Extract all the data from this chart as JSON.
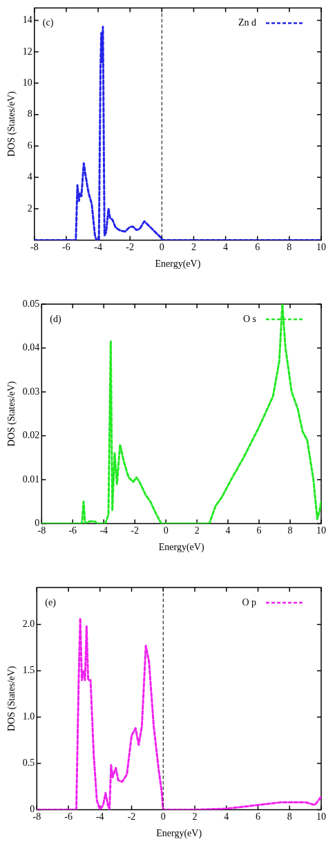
{
  "chart_data": [
    {
      "type": "line",
      "xlabel": "Energy(eV)",
      "ylabel": "DOS (States/eV)",
      "annotations": [
        "(c)"
      ],
      "legend": "top right",
      "line_style": "dashed",
      "marker": "none",
      "grid": false,
      "xlim": [
        -8,
        10
      ],
      "xticks": [
        -8,
        -6,
        -4,
        -2,
        0,
        2,
        4,
        6,
        8,
        10
      ],
      "ylim": [
        0,
        14.8
      ],
      "yticks": [
        2,
        4,
        6,
        8,
        10,
        12,
        14
      ],
      "ref_lines": [
        {
          "axis": "x",
          "value": 0,
          "color": "#000000",
          "line_style": "dashed"
        }
      ],
      "series": [
        {
          "name": "Zn d",
          "color": "#2424e8",
          "x": [
            -8,
            -5.4,
            -5.3,
            -5.2,
            -5.15,
            -5.05,
            -4.9,
            -4.8,
            -4.6,
            -4.4,
            -4.2,
            -4.1,
            -3.95,
            -3.85,
            -3.8,
            -3.75,
            -3.7,
            -3.6,
            -3.5,
            -3.35,
            -3.25,
            -3.1,
            -2.9,
            -2.6,
            -2.3,
            -2,
            -1.8,
            -1.6,
            -1.4,
            -1.1,
            -0.9,
            -0.5,
            -0.1,
            0,
            0.1,
            10
          ],
          "values": [
            0,
            0,
            3.5,
            2.5,
            3,
            2.8,
            4.9,
            4.2,
            3,
            2.3,
            0.3,
            0,
            0,
            11,
            13.2,
            11.3,
            13.6,
            0.3,
            0.5,
            2,
            1.4,
            1.3,
            0.8,
            0.6,
            0.55,
            0.85,
            0.85,
            0.65,
            0.7,
            1.2,
            1,
            0.6,
            0.2,
            0.05,
            0,
            0
          ]
        }
      ]
    },
    {
      "type": "line",
      "xlabel": "Energy(eV)",
      "ylabel": "DOS (States/eV)",
      "annotations": [
        "(d)"
      ],
      "legend": "top right",
      "line_style": "dashed",
      "marker": "none",
      "grid": false,
      "xlim": [
        -8,
        10
      ],
      "xticks": [
        -8,
        -6,
        -4,
        -2,
        0,
        2,
        4,
        6,
        8,
        10
      ],
      "ylim": [
        0,
        0.05
      ],
      "yticks": [
        0,
        0.01,
        0.02,
        0.03,
        0.04,
        0.05
      ],
      "series": [
        {
          "name": "O s",
          "color": "#22e822",
          "x": [
            -8,
            -5.4,
            -5.3,
            -5.2,
            -4.9,
            -4.6,
            -4.4,
            -3.9,
            -3.7,
            -3.55,
            -3.45,
            -3.3,
            -3.15,
            -2.95,
            -2.7,
            -2.4,
            -2.1,
            -1.9,
            -1.7,
            -1.3,
            -1,
            -0.6,
            -0.3,
            2.8,
            3.2,
            3.6,
            4.2,
            5,
            6,
            6.9,
            7.3,
            7.5,
            7.7,
            8.1,
            8.5,
            8.8,
            9.1,
            9.5,
            9.75,
            9.9,
            10
          ],
          "values": [
            0,
            0,
            0.005,
            0,
            0.0005,
            0.0005,
            0,
            0,
            0.002,
            0.0415,
            0.003,
            0.016,
            0.009,
            0.018,
            0.014,
            0.0105,
            0.0095,
            0.0105,
            0.0095,
            0.0065,
            0.005,
            0.002,
            0,
            0,
            0.004,
            0.006,
            0.01,
            0.015,
            0.022,
            0.029,
            0.037,
            0.05,
            0.04,
            0.03,
            0.026,
            0.021,
            0.019,
            0.01,
            0.001,
            0.003,
            0.005
          ]
        }
      ]
    },
    {
      "type": "line",
      "xlabel": "Energy(eV)",
      "ylabel": "DOS (States/eV)",
      "annotations": [
        "(e)"
      ],
      "legend": "top right",
      "line_style": "dashed",
      "marker": "none",
      "grid": false,
      "xlim": [
        -8,
        10
      ],
      "xticks": [
        -8,
        -6,
        -4,
        -2,
        0,
        2,
        4,
        6,
        8,
        10
      ],
      "ylim": [
        0,
        2.4
      ],
      "yticks": [
        0,
        0.5,
        {
          "value": 1,
          "label": "1.0"
        },
        1.5,
        {
          "value": 2,
          "label": "2.0"
        }
      ],
      "ref_lines": [
        {
          "axis": "x",
          "value": 0,
          "color": "#000000",
          "line_style": "dashed"
        }
      ],
      "series": [
        {
          "name": "O p",
          "color": "#ee22ee",
          "x": [
            -8,
            -5.5,
            -5.35,
            -5.25,
            -5.15,
            -5.05,
            -4.95,
            -4.85,
            -4.75,
            -4.6,
            -4.4,
            -4.2,
            -4,
            -3.8,
            -3.65,
            -3.5,
            -3.4,
            -3.3,
            -3.2,
            -3,
            -2.85,
            -2.6,
            -2.3,
            -2,
            -1.75,
            -1.55,
            -1.35,
            -1.1,
            -0.9,
            -0.6,
            -0.3,
            -0.1,
            0,
            2,
            4,
            6,
            7.5,
            9,
            9.6,
            10
          ],
          "values": [
            0,
            0,
            1.4,
            2.07,
            1.4,
            1.5,
            1.4,
            1.98,
            1.4,
            1.4,
            0.6,
            0.1,
            0,
            0.05,
            0.18,
            0.05,
            0,
            0.48,
            0.35,
            0.45,
            0.32,
            0.3,
            0.38,
            0.8,
            0.88,
            0.7,
            0.9,
            1.77,
            1.6,
            0.9,
            0.45,
            0.2,
            0,
            0,
            0.01,
            0.05,
            0.08,
            0.08,
            0.05,
            0.14
          ]
        }
      ]
    }
  ]
}
